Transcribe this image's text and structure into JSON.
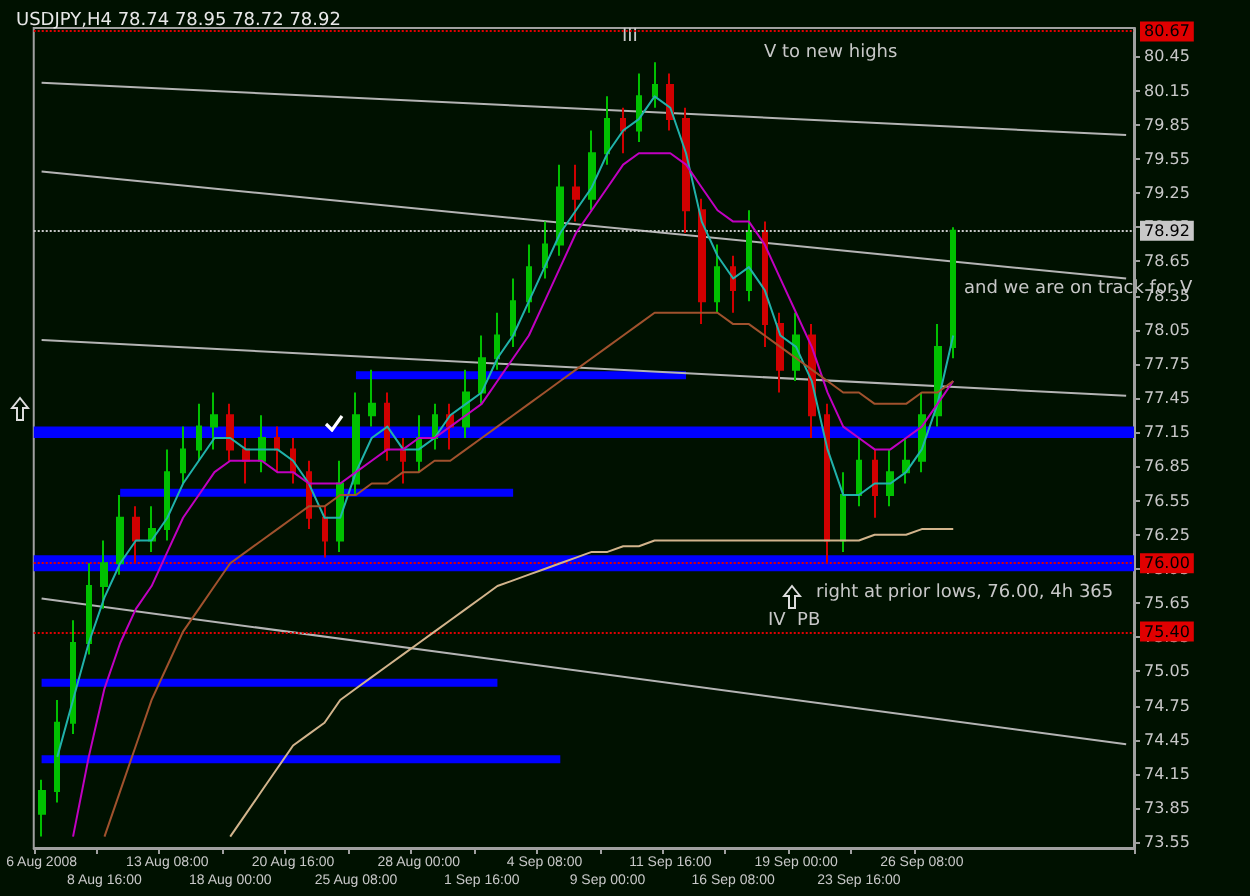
{
  "chart_data": {
    "type": "candlestick",
    "title": "USDJPY,H4 78.74 78.95 78.72 78.92",
    "categories": [
      "6 Aug 2008",
      null,
      null,
      null,
      "8 Aug 16:00",
      null,
      null,
      null,
      "13 Aug 08:00",
      null,
      null,
      null,
      "18 Aug 00:00",
      null,
      null,
      null,
      "20 Aug 16:00",
      null,
      null,
      null,
      "25 Aug 08:00",
      null,
      null,
      null,
      "28 Aug 00:00",
      null,
      null,
      null,
      "1 Sep 16:00",
      null,
      null,
      null,
      "4 Sep 08:00",
      null,
      null,
      null,
      "9 Sep 00:00",
      null,
      null,
      null,
      "11 Sep 16:00",
      null,
      null,
      null,
      "16 Sep 08:00",
      null,
      null,
      null,
      "19 Sep 00:00",
      null,
      null,
      null,
      "23 Sep 16:00",
      null,
      null,
      null,
      "26 Sep 08:00",
      null,
      null,
      null,
      null,
      null,
      null,
      null,
      null,
      null,
      null,
      null,
      null,
      null
    ],
    "ohlc": [
      [
        73.8,
        74.1,
        73.6,
        74.0
      ],
      [
        74.0,
        74.8,
        73.9,
        74.6
      ],
      [
        74.6,
        75.5,
        74.5,
        75.3
      ],
      [
        75.3,
        76.0,
        75.2,
        75.8
      ],
      [
        75.8,
        76.2,
        75.6,
        76.0
      ],
      [
        76.0,
        76.6,
        75.9,
        76.4
      ],
      [
        76.4,
        76.5,
        76.0,
        76.2
      ],
      [
        76.2,
        76.5,
        76.1,
        76.3
      ],
      [
        76.3,
        77.0,
        76.2,
        76.8
      ],
      [
        76.8,
        77.2,
        76.7,
        77.0
      ],
      [
        77.0,
        77.4,
        76.9,
        77.2
      ],
      [
        77.2,
        77.5,
        77.0,
        77.3
      ],
      [
        77.3,
        77.4,
        76.9,
        77.0
      ],
      [
        77.0,
        77.1,
        76.7,
        76.9
      ],
      [
        76.9,
        77.3,
        76.8,
        77.1
      ],
      [
        77.1,
        77.2,
        76.8,
        77.0
      ],
      [
        77.0,
        77.1,
        76.7,
        76.8
      ],
      [
        76.8,
        76.9,
        76.3,
        76.4
      ],
      [
        76.4,
        76.5,
        76.05,
        76.2
      ],
      [
        76.2,
        76.9,
        76.1,
        76.7
      ],
      [
        76.7,
        77.5,
        76.6,
        77.3
      ],
      [
        77.3,
        77.7,
        77.2,
        77.4
      ],
      [
        77.4,
        77.5,
        76.9,
        77.0
      ],
      [
        77.0,
        77.1,
        76.7,
        76.9
      ],
      [
        76.9,
        77.3,
        76.8,
        77.1
      ],
      [
        77.1,
        77.4,
        77.0,
        77.3
      ],
      [
        77.3,
        77.4,
        77.0,
        77.2
      ],
      [
        77.2,
        77.7,
        77.1,
        77.5
      ],
      [
        77.5,
        78.0,
        77.4,
        77.8
      ],
      [
        77.8,
        78.2,
        77.7,
        78.0
      ],
      [
        78.0,
        78.5,
        77.9,
        78.3
      ],
      [
        78.3,
        78.8,
        78.2,
        78.6
      ],
      [
        78.6,
        79.0,
        78.5,
        78.8
      ],
      [
        78.8,
        79.5,
        78.7,
        79.3
      ],
      [
        79.3,
        79.5,
        79.0,
        79.2
      ],
      [
        79.2,
        79.8,
        79.1,
        79.6
      ],
      [
        79.6,
        80.1,
        79.5,
        79.9
      ],
      [
        79.9,
        80.0,
        79.6,
        79.8
      ],
      [
        79.8,
        80.3,
        79.7,
        80.1
      ],
      [
        80.1,
        80.4,
        80.0,
        80.2
      ],
      [
        80.2,
        80.3,
        79.8,
        79.9
      ],
      [
        79.9,
        80.0,
        78.9,
        79.1
      ],
      [
        79.1,
        79.2,
        78.1,
        78.3
      ],
      [
        78.3,
        78.8,
        78.2,
        78.6
      ],
      [
        78.6,
        78.7,
        78.2,
        78.4
      ],
      [
        78.4,
        79.1,
        78.3,
        78.9
      ],
      [
        78.9,
        79.0,
        77.9,
        78.1
      ],
      [
        78.1,
        78.2,
        77.5,
        77.7
      ],
      [
        77.7,
        78.2,
        77.6,
        78.0
      ],
      [
        78.0,
        78.1,
        77.1,
        77.3
      ],
      [
        77.3,
        77.4,
        76.0,
        76.2
      ],
      [
        76.2,
        76.8,
        76.1,
        76.6
      ],
      [
        76.6,
        77.1,
        76.5,
        76.9
      ],
      [
        76.9,
        77.0,
        76.4,
        76.6
      ],
      [
        76.6,
        77.0,
        76.5,
        76.8
      ],
      [
        76.8,
        77.1,
        76.7,
        76.9
      ],
      [
        76.9,
        77.5,
        76.8,
        77.3
      ],
      [
        77.3,
        78.1,
        77.2,
        77.9
      ],
      [
        77.9,
        78.95,
        77.8,
        78.92
      ],
      null,
      null,
      null,
      null,
      null,
      null,
      null,
      null,
      null,
      null,
      null
    ],
    "series": [
      {
        "type": "line",
        "color": "#20b2aa",
        "values": [
          null,
          74.3,
          74.8,
          75.3,
          75.7,
          76.0,
          76.2,
          76.2,
          76.4,
          76.7,
          76.9,
          77.1,
          77.1,
          77.0,
          77.0,
          77.0,
          76.9,
          76.7,
          76.4,
          76.4,
          76.8,
          77.1,
          77.2,
          77.0,
          77.0,
          77.1,
          77.3,
          77.4,
          77.5,
          77.8,
          78.0,
          78.3,
          78.6,
          78.9,
          79.1,
          79.3,
          79.6,
          79.8,
          79.9,
          80.1,
          80.0,
          79.6,
          79.0,
          78.7,
          78.5,
          78.6,
          78.4,
          78.0,
          77.9,
          77.6,
          77.0,
          76.6,
          76.6,
          76.7,
          76.7,
          76.8,
          77.0,
          77.4,
          78.0,
          null,
          null,
          null,
          null,
          null,
          null,
          null,
          null,
          null,
          null,
          null
        ]
      },
      {
        "type": "line",
        "color": "#c000c0",
        "values": [
          null,
          null,
          73.6,
          74.3,
          74.9,
          75.3,
          75.6,
          75.8,
          76.1,
          76.4,
          76.6,
          76.8,
          76.9,
          76.9,
          76.9,
          76.8,
          76.8,
          76.7,
          76.7,
          76.7,
          76.8,
          76.9,
          77.0,
          77.0,
          77.1,
          77.1,
          77.2,
          77.3,
          77.4,
          77.6,
          77.8,
          78.0,
          78.3,
          78.6,
          78.9,
          79.1,
          79.3,
          79.5,
          79.6,
          79.6,
          79.6,
          79.5,
          79.3,
          79.1,
          79.0,
          79.0,
          78.8,
          78.5,
          78.2,
          77.9,
          77.5,
          77.2,
          77.1,
          77.0,
          77.0,
          77.1,
          77.2,
          77.4,
          77.6,
          null,
          null,
          null,
          null,
          null,
          null,
          null,
          null,
          null,
          null,
          null
        ]
      },
      {
        "type": "line",
        "color": "#a0522d",
        "values": [
          null,
          null,
          null,
          null,
          73.6,
          74.0,
          74.4,
          74.8,
          75.1,
          75.4,
          75.6,
          75.8,
          76.0,
          76.1,
          76.2,
          76.3,
          76.4,
          76.5,
          76.5,
          76.6,
          76.6,
          76.7,
          76.7,
          76.8,
          76.8,
          76.9,
          76.9,
          77.0,
          77.1,
          77.2,
          77.3,
          77.4,
          77.5,
          77.6,
          77.7,
          77.8,
          77.9,
          78.0,
          78.1,
          78.2,
          78.2,
          78.2,
          78.2,
          78.2,
          78.1,
          78.1,
          78.0,
          77.9,
          77.8,
          77.7,
          77.6,
          77.5,
          77.5,
          77.4,
          77.4,
          77.4,
          77.5,
          77.5,
          77.6,
          null,
          null,
          null,
          null,
          null,
          null,
          null,
          null,
          null,
          null,
          null
        ]
      },
      {
        "type": "line",
        "color": "#d2b48c",
        "values": [
          null,
          null,
          null,
          null,
          null,
          null,
          null,
          null,
          null,
          null,
          null,
          null,
          73.6,
          73.8,
          74.0,
          74.2,
          74.4,
          74.5,
          74.6,
          74.8,
          74.9,
          75.0,
          75.1,
          75.2,
          75.3,
          75.4,
          75.5,
          75.6,
          75.7,
          75.8,
          75.85,
          75.9,
          75.95,
          76.0,
          76.05,
          76.1,
          76.1,
          76.15,
          76.15,
          76.2,
          76.2,
          76.2,
          76.2,
          76.2,
          76.2,
          76.2,
          76.2,
          76.2,
          76.2,
          76.2,
          76.2,
          76.2,
          76.2,
          76.25,
          76.25,
          76.25,
          76.3,
          76.3,
          76.3,
          null,
          null,
          null,
          null,
          null,
          null,
          null,
          null,
          null,
          null,
          null
        ]
      },
      {
        "type": "line",
        "color": "#b4b4b4",
        "values": [
          80.22,
          null,
          null,
          null,
          null,
          null,
          null,
          null,
          null,
          null,
          null,
          null,
          null,
          null,
          null,
          null,
          null,
          null,
          null,
          null,
          null,
          null,
          null,
          null,
          null,
          null,
          null,
          null,
          null,
          null,
          null,
          null,
          null,
          null,
          null,
          null,
          null,
          null,
          null,
          null,
          null,
          null,
          null,
          null,
          null,
          null,
          null,
          null,
          null,
          null,
          null,
          null,
          null,
          null,
          null,
          null,
          null,
          null,
          null,
          null,
          null,
          null,
          null,
          null,
          null,
          null,
          null,
          null,
          null,
          79.76
        ]
      },
      {
        "type": "line",
        "color": "#b4b4b4",
        "values": [
          79.44,
          null,
          null,
          null,
          null,
          null,
          null,
          null,
          null,
          null,
          null,
          null,
          null,
          null,
          null,
          null,
          null,
          null,
          null,
          null,
          null,
          null,
          null,
          null,
          null,
          null,
          null,
          null,
          null,
          null,
          null,
          null,
          null,
          null,
          null,
          null,
          null,
          null,
          null,
          null,
          null,
          null,
          null,
          null,
          null,
          null,
          null,
          null,
          null,
          null,
          null,
          null,
          null,
          null,
          null,
          null,
          null,
          null,
          null,
          null,
          null,
          null,
          null,
          null,
          null,
          null,
          null,
          null,
          null,
          78.5
        ]
      },
      {
        "type": "line",
        "color": "#b4b4b4",
        "values": [
          77.96,
          null,
          null,
          null,
          null,
          null,
          null,
          null,
          null,
          null,
          null,
          null,
          null,
          null,
          null,
          null,
          null,
          null,
          null,
          null,
          null,
          null,
          null,
          null,
          null,
          null,
          null,
          null,
          null,
          null,
          null,
          null,
          null,
          null,
          null,
          null,
          null,
          null,
          null,
          null,
          null,
          null,
          null,
          null,
          null,
          null,
          null,
          null,
          null,
          null,
          null,
          null,
          null,
          null,
          null,
          null,
          null,
          null,
          null,
          null,
          null,
          null,
          null,
          null,
          null,
          null,
          null,
          null,
          null,
          77.47
        ]
      },
      {
        "type": "line",
        "color": "#b4b4b4",
        "values": [
          75.69,
          null,
          null,
          null,
          null,
          null,
          null,
          null,
          null,
          null,
          null,
          null,
          null,
          null,
          null,
          null,
          null,
          null,
          null,
          null,
          null,
          null,
          null,
          null,
          null,
          null,
          null,
          null,
          null,
          null,
          null,
          null,
          null,
          null,
          null,
          null,
          null,
          null,
          null,
          null,
          null,
          null,
          null,
          null,
          null,
          null,
          null,
          null,
          null,
          null,
          null,
          null,
          null,
          null,
          null,
          null,
          null,
          null,
          null,
          null,
          null,
          null,
          null,
          null,
          null,
          null,
          null,
          null,
          null,
          74.41
        ]
      },
      {
        "type": "line",
        "color": "#0000ff",
        "values": [
          null,
          null,
          null,
          null,
          null,
          null,
          null,
          null,
          null,
          null,
          null,
          null,
          null,
          null,
          null,
          null,
          null,
          null,
          null,
          null,
          77.65,
          null,
          null,
          null,
          null,
          null,
          null,
          null,
          null,
          null,
          null,
          null,
          null,
          null,
          null,
          null,
          null,
          null,
          null,
          null,
          null,
          77.65,
          null,
          null,
          null,
          null,
          null,
          null,
          null,
          null,
          null,
          null,
          null,
          null,
          null,
          null,
          null,
          null,
          null,
          null,
          null,
          null,
          null,
          null,
          null,
          null,
          null,
          null,
          null,
          null
        ]
      },
      {
        "type": "line",
        "color": "#0000ff",
        "values": [
          null,
          null,
          null,
          null,
          null,
          76.62,
          null,
          null,
          null,
          null,
          null,
          null,
          null,
          null,
          null,
          null,
          null,
          null,
          null,
          null,
          null,
          null,
          null,
          null,
          null,
          null,
          null,
          null,
          null,
          null,
          76.62,
          null,
          null,
          null,
          null,
          null,
          null,
          null,
          null,
          null,
          null,
          null,
          null,
          null,
          null,
          null,
          null,
          null,
          null,
          null,
          null,
          null,
          null,
          null,
          null,
          null,
          null,
          null,
          null,
          null,
          null,
          null,
          null,
          null,
          null,
          null,
          null,
          null,
          null,
          null
        ]
      },
      {
        "type": "line",
        "color": "#0000ff",
        "values": [
          74.95,
          null,
          null,
          null,
          null,
          null,
          null,
          null,
          null,
          null,
          null,
          null,
          null,
          null,
          null,
          null,
          null,
          null,
          null,
          null,
          null,
          null,
          null,
          null,
          null,
          null,
          null,
          null,
          null,
          74.95,
          null,
          null,
          null,
          null,
          null,
          null,
          null,
          null,
          null,
          null,
          null,
          null,
          null,
          null,
          null,
          null,
          null,
          null,
          null,
          null,
          null,
          null,
          null,
          null,
          null,
          null,
          null,
          null,
          null,
          null,
          null,
          null,
          null,
          null,
          null,
          null,
          null,
          null,
          null,
          null
        ]
      },
      {
        "type": "line",
        "color": "#0000ff",
        "values": [
          74.28,
          null,
          null,
          null,
          null,
          null,
          null,
          null,
          null,
          null,
          null,
          null,
          null,
          null,
          null,
          null,
          null,
          null,
          null,
          null,
          null,
          null,
          null,
          null,
          null,
          null,
          null,
          null,
          null,
          null,
          null,
          null,
          null,
          74.28,
          null,
          null,
          null,
          null,
          null,
          null,
          null,
          null,
          null,
          null,
          null,
          null,
          null,
          null,
          null,
          null,
          null,
          null,
          null,
          null,
          null,
          null,
          null,
          null,
          null,
          null,
          null,
          null,
          null,
          null,
          null,
          null,
          null,
          null,
          null,
          null
        ]
      }
    ],
    "ylim": [
      73.5,
      80.7
    ],
    "yticks": [
      73.55,
      73.85,
      74.15,
      74.45,
      74.75,
      75.05,
      75.35,
      75.65,
      75.95,
      76.25,
      76.55,
      76.85,
      77.15,
      77.45,
      77.75,
      78.05,
      78.35,
      78.65,
      78.95,
      79.25,
      79.55,
      79.85,
      80.15,
      80.45
    ],
    "bands": [
      {
        "axis": "y",
        "from": 77.1,
        "to": 77.2,
        "color": "#0000ff"
      },
      {
        "axis": "y",
        "from": 75.93,
        "to": 76.07,
        "color": "#0000ff"
      }
    ],
    "ref_lines": [
      {
        "axis": "y",
        "value": 80.67,
        "label": "80.67",
        "color": "#e00000",
        "line_style": "dotted"
      },
      {
        "axis": "y",
        "value": 78.92,
        "label": "78.92",
        "color": "#c8c8c8",
        "line_style": "dotted"
      },
      {
        "axis": "y",
        "value": 76.0,
        "label": "76.00",
        "color": "#e00000",
        "line_style": "dotted"
      },
      {
        "axis": "y",
        "value": 75.4,
        "label": "75.40",
        "color": "#e00000",
        "line_style": "dotted"
      }
    ],
    "annotations": [
      "III",
      "V to new highs",
      "and we are on track for V",
      "right at prior lows, 76.00, 4h 365",
      "IV  PB"
    ]
  }
}
